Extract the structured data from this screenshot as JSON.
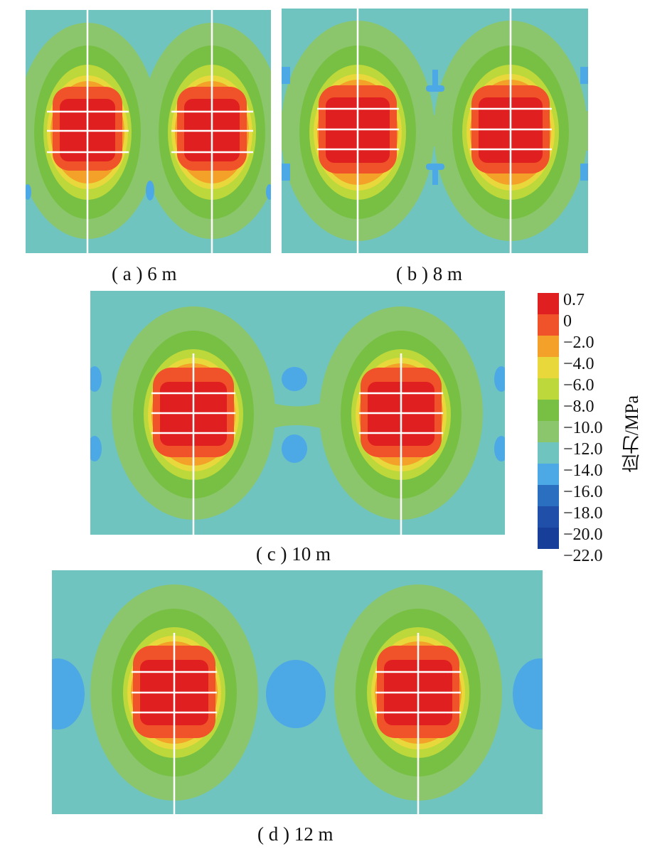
{
  "figure": {
    "panels": [
      {
        "id": "a",
        "caption": "( a ) 6 m"
      },
      {
        "id": "b",
        "caption": "( b ) 8 m"
      },
      {
        "id": "c",
        "caption": "( c ) 10 m"
      },
      {
        "id": "d",
        "caption": "( d ) 12 m"
      }
    ],
    "legend": {
      "title": "应力/MPa",
      "levels": [
        "0.7",
        "0",
        "−2.0",
        "−4.0",
        "−6.0",
        "−8.0",
        "−10.0",
        "−12.0",
        "−14.0",
        "−16.0",
        "−18.0",
        "−20.0",
        "−22.0"
      ],
      "colors": [
        "#e02020",
        "#f0522a",
        "#f4a12a",
        "#e8d83c",
        "#bcd83a",
        "#78c043",
        "#8cc66c",
        "#6fc4c0",
        "#4da8e6",
        "#2b6fc0",
        "#1f4fa8",
        "#173e99"
      ]
    }
  }
}
